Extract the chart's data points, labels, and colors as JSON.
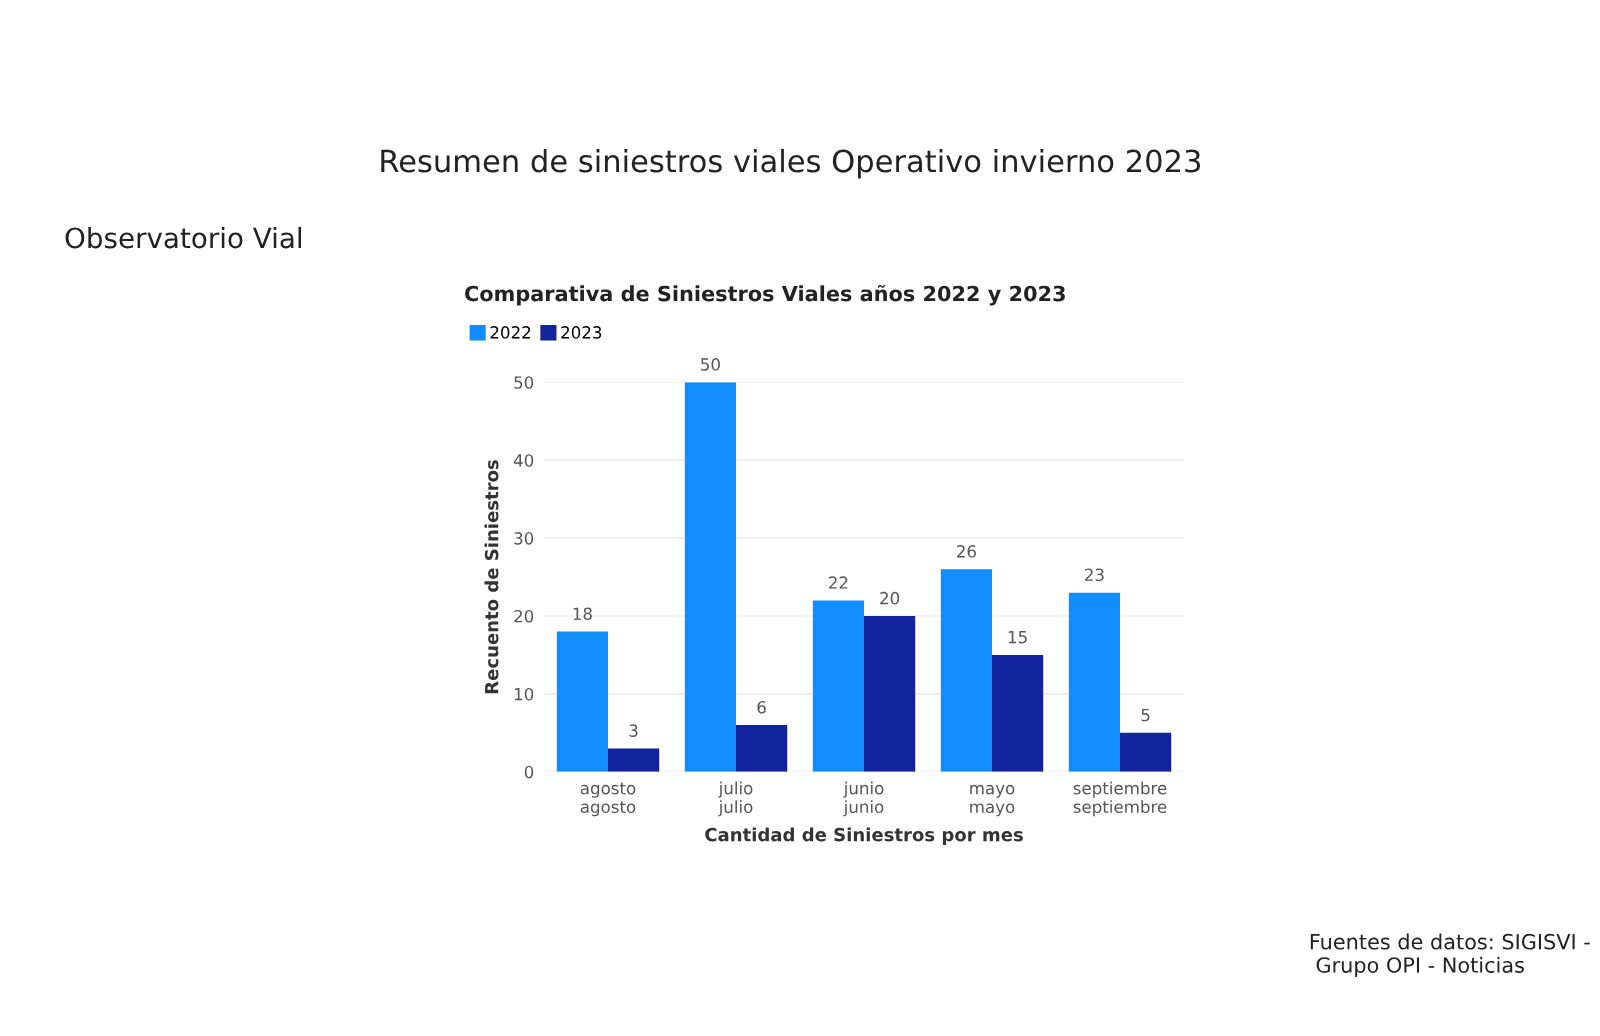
{
  "chart_data": {
    "type": "bar",
    "title": "Comparativa de Siniestros Viales años 2022 y 2023",
    "subtitle": "Resumen de siniestros viales Operativo invierno 2023",
    "xlabel": "Cantidad de Siniestros por mes",
    "ylabel": "Recuento de Siniestros",
    "categories": [
      "agosto\nagosto",
      "julio\njulio",
      "junio\njunio",
      "mayo\nmayo",
      "septiembre\nseptiembre"
    ],
    "series": [
      {
        "name": "2022",
        "color": "#118dff",
        "values": [
          18,
          50,
          22,
          26,
          23
        ]
      },
      {
        "name": "2023",
        "color": "#12239e",
        "values": [
          3,
          6,
          20,
          15,
          5
        ]
      }
    ],
    "ylim": [
      0,
      50
    ],
    "yticks": [
      0,
      10,
      20,
      30,
      40,
      50
    ],
    "grid": "y",
    "legend": "top left",
    "data_labels": true,
    "annotations": [
      "Observatorio Vial",
      "Fuentes de datos: SIGISVI -\n Grupo OPI - Noticias"
    ]
  }
}
